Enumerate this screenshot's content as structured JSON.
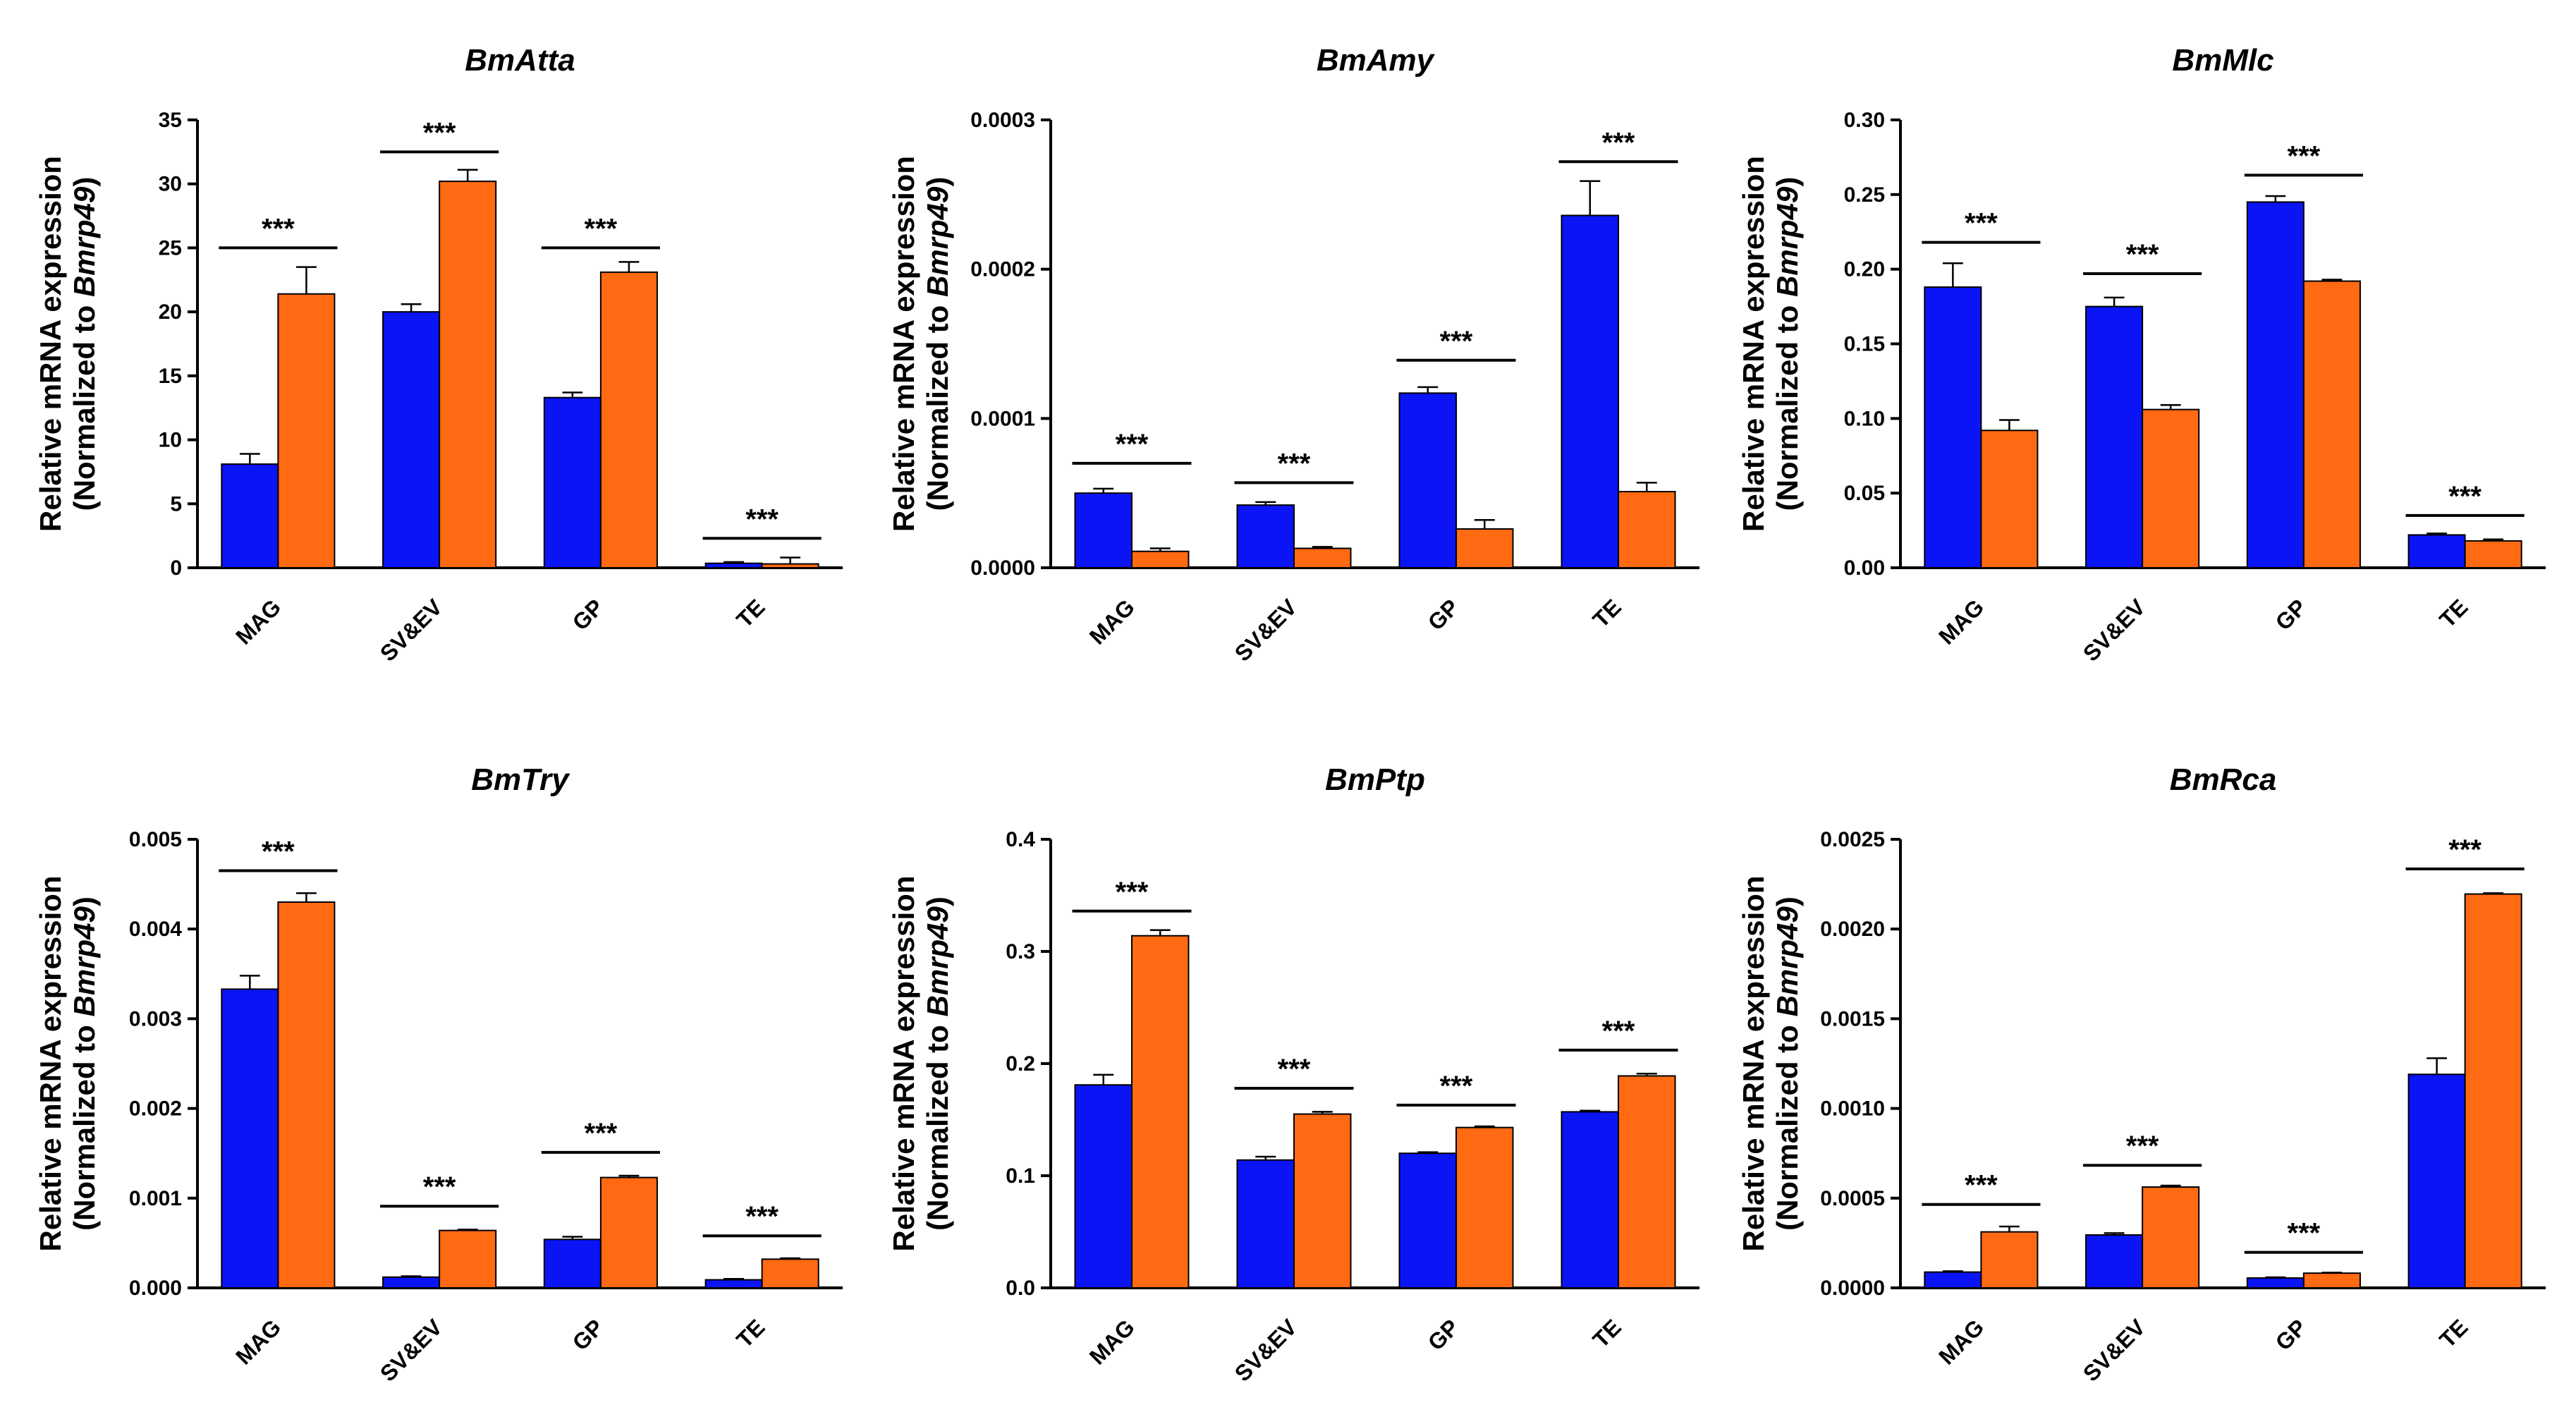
{
  "colors": {
    "series_a": "#0a14f5",
    "series_b": "#ff6a12",
    "axis": "#000000"
  },
  "chart_data": [
    {
      "type": "bar",
      "title": "BmAtta",
      "ylabel_line1": "Relative mRNA expression",
      "ylabel_line2_prefix": "(Normalized to ",
      "ylabel_line2_gene": "Bmrp49",
      "ylabel_line2_suffix": ")",
      "categories": [
        "MAG",
        "SV&EV",
        "GP",
        "TE"
      ],
      "series": [
        {
          "name": "blue",
          "values": [
            8.1,
            20.0,
            13.3,
            0.35
          ],
          "errors": [
            0.8,
            0.6,
            0.4,
            0.1
          ]
        },
        {
          "name": "orange",
          "values": [
            21.4,
            30.2,
            23.1,
            0.3
          ],
          "errors": [
            2.1,
            0.9,
            0.8,
            0.5
          ]
        }
      ],
      "significance": [
        "***",
        "***",
        "***",
        "***"
      ],
      "sig_levels": [
        25,
        32.5,
        25,
        2.3
      ],
      "ylim": [
        0,
        35
      ],
      "yticks": [
        "0",
        "5",
        "10",
        "15",
        "20",
        "25",
        "30",
        "35"
      ],
      "ytick_values": [
        0,
        5,
        10,
        15,
        20,
        25,
        30,
        35
      ]
    },
    {
      "type": "bar",
      "title": "BmAmy",
      "ylabel_line1": "Relative mRNA expression",
      "ylabel_line2_prefix": "(Normalized to ",
      "ylabel_line2_gene": "Bmrp49",
      "ylabel_line2_suffix": ")",
      "categories": [
        "MAG",
        "SV&EV",
        "GP",
        "TE"
      ],
      "series": [
        {
          "name": "blue",
          "values": [
            5e-05,
            4.2e-05,
            0.000117,
            0.000236
          ],
          "errors": [
            3e-06,
            2e-06,
            4e-06,
            2.3e-05
          ]
        },
        {
          "name": "orange",
          "values": [
            1.1e-05,
            1.3e-05,
            2.6e-05,
            5.1e-05
          ],
          "errors": [
            2e-06,
            1e-06,
            6e-06,
            6e-06
          ]
        }
      ],
      "significance": [
        "***",
        "***",
        "***",
        "***"
      ],
      "sig_levels": [
        7e-05,
        5.7e-05,
        0.000139,
        0.000272
      ],
      "ylim": [
        0,
        0.0003
      ],
      "yticks": [
        "0.0000",
        "0.0001",
        "0.0002",
        "0.0003"
      ],
      "ytick_values": [
        0,
        0.0001,
        0.0002,
        0.0003
      ]
    },
    {
      "type": "bar",
      "title": "BmMlc",
      "ylabel_line1": "Relative mRNA expression",
      "ylabel_line2_prefix": "(Normalized to ",
      "ylabel_line2_gene": "Bmrp49",
      "ylabel_line2_suffix": ")",
      "categories": [
        "MAG",
        "SV&EV",
        "GP",
        "TE"
      ],
      "series": [
        {
          "name": "blue",
          "values": [
            0.188,
            0.175,
            0.245,
            0.022
          ],
          "errors": [
            0.016,
            0.006,
            0.004,
            0.001
          ]
        },
        {
          "name": "orange",
          "values": [
            0.092,
            0.106,
            0.192,
            0.018
          ],
          "errors": [
            0.007,
            0.003,
            0.001,
            0.001
          ]
        }
      ],
      "significance": [
        "***",
        "***",
        "***",
        "***"
      ],
      "sig_levels": [
        0.218,
        0.197,
        0.263,
        0.035
      ],
      "ylim": [
        0,
        0.3
      ],
      "yticks": [
        "0.00",
        "0.05",
        "0.10",
        "0.15",
        "0.20",
        "0.25",
        "0.30"
      ],
      "ytick_values": [
        0,
        0.05,
        0.1,
        0.15,
        0.2,
        0.25,
        0.3
      ]
    },
    {
      "type": "bar",
      "title": "BmTry",
      "ylabel_line1": "Relative mRNA expression",
      "ylabel_line2_prefix": "(Normalized to ",
      "ylabel_line2_gene": "Bmrp49",
      "ylabel_line2_suffix": ")",
      "categories": [
        "MAG",
        "SV&EV",
        "GP",
        "TE"
      ],
      "series": [
        {
          "name": "blue",
          "values": [
            0.00333,
            0.00012,
            0.00054,
            9e-05
          ],
          "errors": [
            0.00015,
            1e-05,
            3e-05,
            1e-05
          ]
        },
        {
          "name": "orange",
          "values": [
            0.0043,
            0.00064,
            0.00123,
            0.00032
          ],
          "errors": [
            0.0001,
            1e-05,
            2e-05,
            1e-05
          ]
        }
      ],
      "significance": [
        "***",
        "***",
        "***",
        "***"
      ],
      "sig_levels": [
        0.00465,
        0.00091,
        0.00151,
        0.00058
      ],
      "ylim": [
        0,
        0.005
      ],
      "yticks": [
        "0.000",
        "0.001",
        "0.002",
        "0.003",
        "0.004",
        "0.005"
      ],
      "ytick_values": [
        0,
        0.001,
        0.002,
        0.003,
        0.004,
        0.005
      ]
    },
    {
      "type": "bar",
      "title": "BmPtp",
      "ylabel_line1": "Relative mRNA expression",
      "ylabel_line2_prefix": "(Normalized to ",
      "ylabel_line2_gene": "Bmrp49",
      "ylabel_line2_suffix": ")",
      "categories": [
        "MAG",
        "SV&EV",
        "GP",
        "TE"
      ],
      "series": [
        {
          "name": "blue",
          "values": [
            0.181,
            0.114,
            0.12,
            0.157
          ],
          "errors": [
            0.009,
            0.003,
            0.001,
            0.001
          ]
        },
        {
          "name": "orange",
          "values": [
            0.314,
            0.155,
            0.143,
            0.189
          ],
          "errors": [
            0.005,
            0.002,
            0.001,
            0.002
          ]
        }
      ],
      "significance": [
        "***",
        "***",
        "***",
        "***"
      ],
      "sig_levels": [
        0.336,
        0.178,
        0.163,
        0.212
      ],
      "ylim": [
        0,
        0.4
      ],
      "yticks": [
        "0.0",
        "0.1",
        "0.2",
        "0.3",
        "0.4"
      ],
      "ytick_values": [
        0,
        0.1,
        0.2,
        0.3,
        0.4
      ]
    },
    {
      "type": "bar",
      "title": "BmRca",
      "ylabel_line1": "Relative mRNA expression",
      "ylabel_line2_prefix": "(Normalized to ",
      "ylabel_line2_gene": "Bmrp49",
      "ylabel_line2_suffix": ")",
      "categories": [
        "MAG",
        "SV&EV",
        "GP",
        "TE"
      ],
      "series": [
        {
          "name": "blue",
          "values": [
            8.8e-05,
            0.000295,
            5.5e-05,
            0.00119
          ],
          "errors": [
            5e-06,
            1e-05,
            4e-06,
            9e-05
          ]
        },
        {
          "name": "orange",
          "values": [
            0.000312,
            0.000562,
            8.2e-05,
            0.002195
          ],
          "errors": [
            3e-05,
            8e-06,
            3e-06,
            5e-06
          ]
        }
      ],
      "significance": [
        "***",
        "***",
        "***",
        "***"
      ],
      "sig_levels": [
        0.000465,
        0.000683,
        0.000198,
        0.002335
      ],
      "ylim": [
        0,
        0.0025
      ],
      "yticks": [
        "0.0000",
        "0.0005",
        "0.0010",
        "0.0015",
        "0.0020",
        "0.0025"
      ],
      "ytick_values": [
        0,
        0.0005,
        0.001,
        0.0015,
        0.002,
        0.0025
      ]
    }
  ]
}
